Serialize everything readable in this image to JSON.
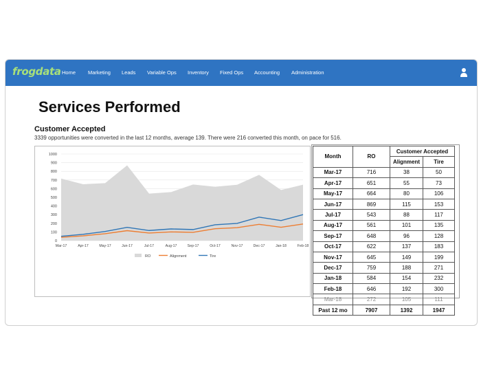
{
  "nav": {
    "logo": "frogdata",
    "items": [
      "Home",
      "Marketing",
      "Leads",
      "Variable Ops",
      "Inventory",
      "Fixed Ops",
      "Accounting",
      "Administration"
    ]
  },
  "page": {
    "title": "Services Performed",
    "subtitle": "Customer Accepted",
    "description": "3339 opportunities were converted in the last 12 months, average 139.  There were 216 converted this month, on pace for 516."
  },
  "colors": {
    "navbar": "#2f74c2",
    "ro": "#d9d9d9",
    "alignment": "#ed7d31",
    "tire": "#2e75b6"
  },
  "chart_data": {
    "type": "area",
    "categories": [
      "Mar-17",
      "Apr-17",
      "May-17",
      "Jun-17",
      "Jul-17",
      "Aug-17",
      "Sep-17",
      "Oct-17",
      "Nov-17",
      "Dec-17",
      "Jan-18",
      "Feb-18"
    ],
    "ylim": [
      0,
      1000
    ],
    "yticks": [
      0,
      100,
      200,
      300,
      400,
      500,
      600,
      700,
      800,
      900,
      1000
    ],
    "series": [
      {
        "name": "RO",
        "kind": "area",
        "values": [
          716,
          651,
          664,
          869,
          543,
          561,
          648,
          622,
          645,
          759,
          584,
          646
        ]
      },
      {
        "name": "Alignment",
        "kind": "line",
        "values": [
          38,
          55,
          80,
          115,
          88,
          101,
          96,
          137,
          149,
          188,
          154,
          192
        ]
      },
      {
        "name": "Tire",
        "kind": "line",
        "values": [
          50,
          73,
          106,
          153,
          117,
          135,
          128,
          183,
          199,
          271,
          232,
          300
        ]
      }
    ],
    "legend": "bottom"
  },
  "table": {
    "headers": {
      "month": "Month",
      "ro": "RO",
      "group": "Customer Accepted",
      "alignment": "Alignment",
      "tire": "Tire"
    },
    "rows": [
      {
        "month": "Mar-17",
        "ro": "716",
        "alignment": "38",
        "tire": "50"
      },
      {
        "month": "Apr-17",
        "ro": "651",
        "alignment": "55",
        "tire": "73"
      },
      {
        "month": "May-17",
        "ro": "664",
        "alignment": "80",
        "tire": "106"
      },
      {
        "month": "Jun-17",
        "ro": "869",
        "alignment": "115",
        "tire": "153"
      },
      {
        "month": "Jul-17",
        "ro": "543",
        "alignment": "88",
        "tire": "117"
      },
      {
        "month": "Aug-17",
        "ro": "561",
        "alignment": "101",
        "tire": "135"
      },
      {
        "month": "Sep-17",
        "ro": "648",
        "alignment": "96",
        "tire": "128"
      },
      {
        "month": "Oct-17",
        "ro": "622",
        "alignment": "137",
        "tire": "183"
      },
      {
        "month": "Nov-17",
        "ro": "645",
        "alignment": "149",
        "tire": "199"
      },
      {
        "month": "Dec-17",
        "ro": "759",
        "alignment": "188",
        "tire": "271"
      },
      {
        "month": "Jan-18",
        "ro": "584",
        "alignment": "154",
        "tire": "232"
      },
      {
        "month": "Feb-18",
        "ro": "646",
        "alignment": "192",
        "tire": "300"
      },
      {
        "month": "Mar-18",
        "ro": "272",
        "alignment": "105",
        "tire": "111"
      }
    ],
    "total": {
      "month": "Past 12 mo",
      "ro": "7907",
      "alignment": "1392",
      "tire": "1947"
    }
  }
}
